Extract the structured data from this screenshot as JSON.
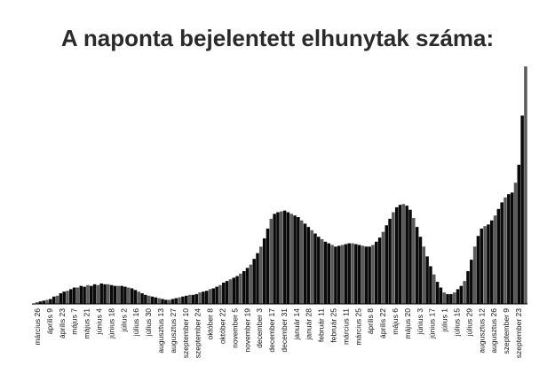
{
  "chart_data": {
    "type": "bar",
    "title": "A naponta bejelentett elhunytak száma:",
    "xlabel": "",
    "ylabel": "",
    "grid": false,
    "legend": "none",
    "colors": {
      "bar_dark": "#0a0a0a",
      "bar_light": "#5a5a5a",
      "title": "#2a2a2a"
    },
    "tick_labels": [
      "március 26",
      "április 9",
      "április 23",
      "május 7",
      "május 21",
      "június 4",
      "június 18",
      "július 2",
      "július 16",
      "július 30",
      "augusztus 13",
      "augusztus 27",
      "szeptember 10",
      "szeptember 24",
      "október 8",
      "október 22",
      "november 5",
      "november 19",
      "december 3",
      "december 17",
      "december 31",
      "január 14",
      "január 28",
      "február 11",
      "február 25",
      "március 11",
      "március 25",
      "április 8",
      "április 22",
      "május 6",
      "május 20",
      "június 3",
      "június 17",
      "július 1",
      "július 15",
      "július 29",
      "augusztus 12",
      "augusztus 26",
      "szeptember 9",
      "szeptember 23"
    ],
    "series": [
      {
        "values": [
          0,
          2,
          3,
          4,
          5,
          6,
          9,
          10,
          13,
          15,
          16,
          18,
          20,
          20,
          22,
          21,
          23,
          22,
          24,
          23,
          25,
          24,
          24,
          23,
          22,
          22,
          22,
          21,
          20,
          19,
          17,
          15,
          13,
          11,
          10,
          9,
          8,
          7,
          6,
          5,
          5,
          6,
          7,
          8,
          9,
          10,
          11,
          11,
          12,
          14,
          15,
          16,
          18,
          19,
          21,
          23,
          26,
          28,
          30,
          32,
          34,
          37,
          40,
          44,
          48,
          55,
          62,
          70,
          80,
          92,
          104,
          110,
          112,
          113,
          114,
          112,
          110,
          108,
          106,
          102,
          98,
          94,
          90,
          86,
          82,
          79,
          76,
          74,
          72,
          70,
          71,
          72,
          73,
          74,
          74,
          73,
          72,
          71,
          70,
          70,
          72,
          76,
          81,
          88,
          96,
          104,
          112,
          118,
          121,
          122,
          120,
          115,
          105,
          94,
          82,
          70,
          58,
          46,
          36,
          27,
          20,
          14,
          12,
          12,
          14,
          18,
          22,
          28,
          40,
          54,
          70,
          83,
          92,
          95,
          97,
          102,
          108,
          116,
          124,
          130,
          134,
          136,
          148,
          170,
          230,
          290
        ]
      }
    ]
  }
}
